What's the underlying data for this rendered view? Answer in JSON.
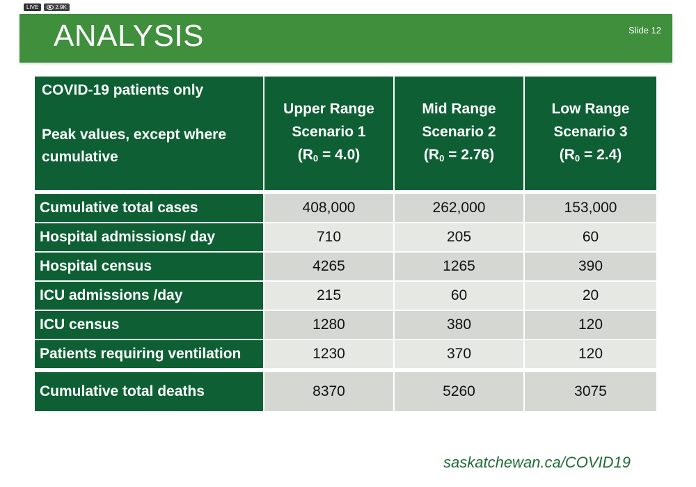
{
  "overlay": {
    "live_label": "LIVE",
    "viewer_count": "2.9K"
  },
  "banner": {
    "title": "ANALYSIS",
    "slide_label": "Slide 12"
  },
  "table": {
    "header_note_1": "COVID-19 patients only",
    "header_note_2": "Peak values, except where cumulative",
    "columns": [
      {
        "line1": "Upper Range",
        "line2": "Scenario 1",
        "r_prefix": "(R",
        "r_sub": "0",
        "r_suffix": " = 4.0)"
      },
      {
        "line1": "Mid Range",
        "line2": "Scenario  2",
        "r_prefix": "(R",
        "r_sub": "0",
        "r_suffix": " = 2.76)"
      },
      {
        "line1": "Low Range",
        "line2": "Scenario 3",
        "r_prefix": "(R",
        "r_sub": "0",
        "r_suffix": " = 2.4)"
      }
    ],
    "rows": [
      {
        "label": "Cumulative total cases",
        "values": [
          "408,000",
          "262,000",
          "153,000"
        ]
      },
      {
        "label": "Hospital admissions/ day",
        "values": [
          "710",
          "205",
          "60"
        ]
      },
      {
        "label": "Hospital census",
        "values": [
          "4265",
          "1265",
          "390"
        ]
      },
      {
        "label": "ICU admissions /day",
        "values": [
          "215",
          "60",
          "20"
        ]
      },
      {
        "label": "ICU census",
        "values": [
          "1280",
          "380",
          "120"
        ]
      },
      {
        "label": "Patients requiring ventilation",
        "values": [
          "1230",
          "370",
          "120"
        ]
      },
      {
        "label": "Cumulative total deaths",
        "values": [
          "8370",
          "5260",
          "3075"
        ]
      }
    ]
  },
  "footer": {
    "url": "saskatchewan.ca/COVID19"
  },
  "colors": {
    "banner_green": "#3f8f3c",
    "table_dark_green": "#0e6034",
    "footer_link_green": "#1f6b35"
  }
}
